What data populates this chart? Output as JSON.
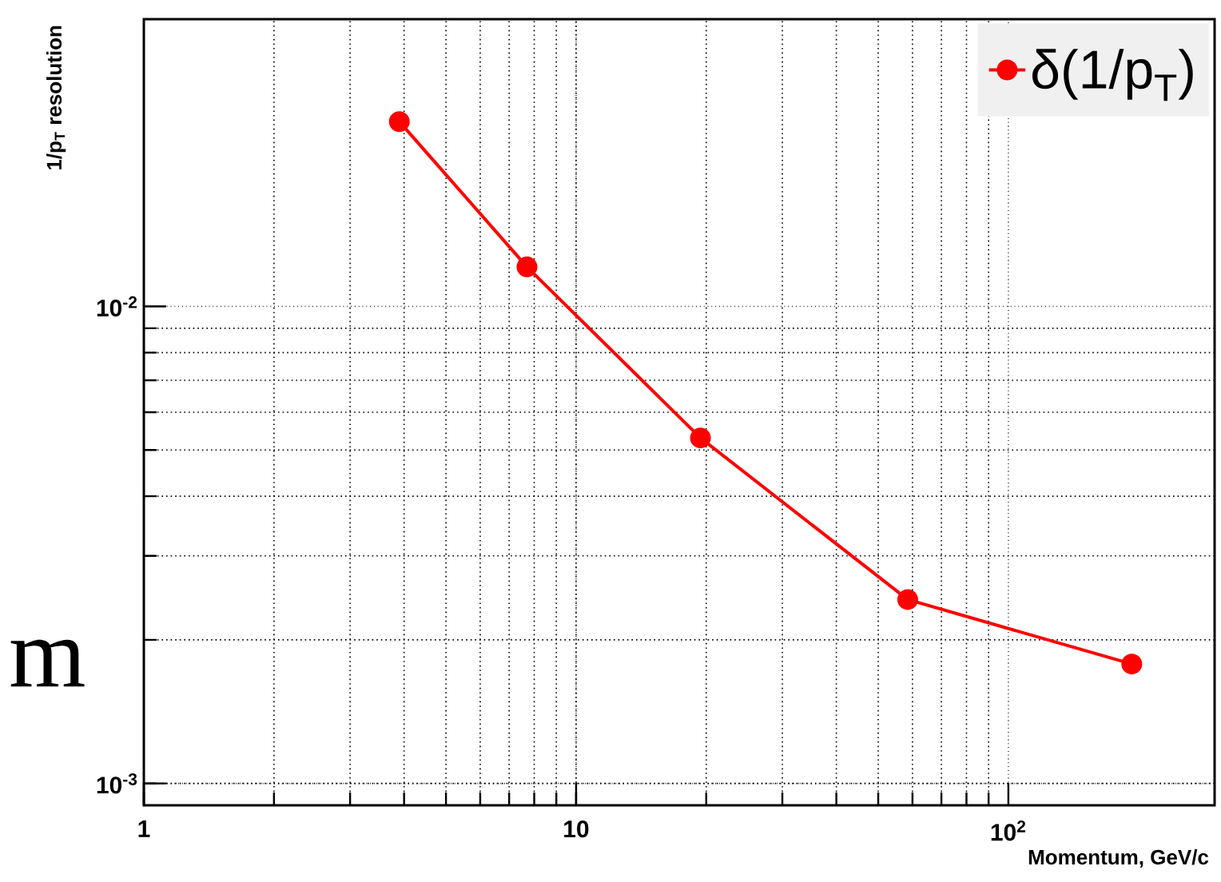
{
  "chart_data": {
    "type": "line",
    "xlabel": "Momentum, GeV/c",
    "ylabel": "1/p$_{T}$ resolution",
    "x": [
      3.9,
      7.7,
      19.4,
      58.5,
      193
    ],
    "series": [
      {
        "name": "δ(1/p$_{T}$)",
        "color": "#ff0000",
        "values": [
          0.0244,
          0.0121,
          0.0053,
          0.00243,
          0.00178
        ]
      }
    ],
    "xlim": [
      1,
      300
    ],
    "ylim": [
      0.0009,
      0.04
    ],
    "xticks": [
      1,
      10,
      {
        "value": 100,
        "label": "10$^{2}$"
      }
    ],
    "yticks": [
      {
        "value": 0.001,
        "label": "10$^{-3}$"
      },
      {
        "value": 0.01,
        "label": "10$^{-2}$"
      }
    ],
    "log": "xy",
    "grid": true,
    "legend": "top right",
    "marker": "circle",
    "line_style": "solid",
    "annotations": [
      "m"
    ]
  }
}
